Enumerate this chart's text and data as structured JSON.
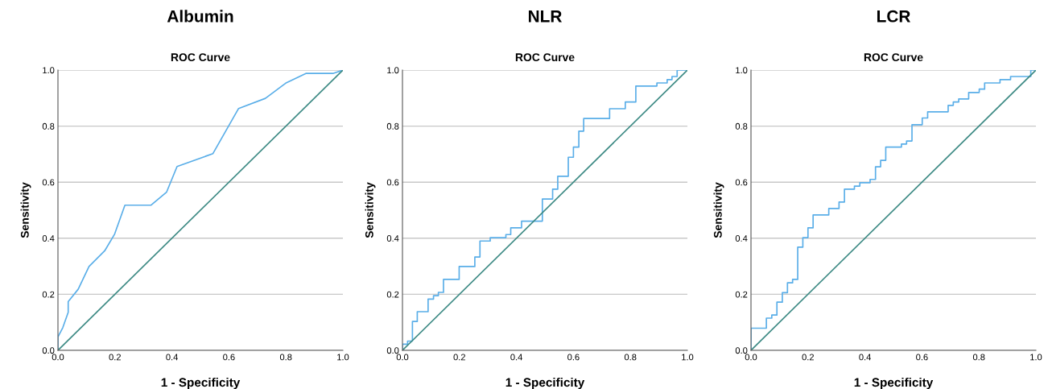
{
  "chart_data": [
    {
      "type": "line",
      "title": "Albumin",
      "subtitle": "ROC Curve",
      "xlabel": "1 - Specificity",
      "ylabel": "Sensitivity",
      "xlim": [
        0,
        1
      ],
      "ylim": [
        0,
        1
      ],
      "xticks": [
        {
          "value": 0,
          "label": "0.0"
        },
        {
          "value": 0.2,
          "label": "0.2"
        },
        {
          "value": 0.4,
          "label": "0.4"
        },
        {
          "value": 0.6,
          "label": "0.6"
        },
        {
          "value": 0.8,
          "label": "0.8"
        },
        {
          "value": 1,
          "label": "1.0"
        }
      ],
      "yticks": [
        {
          "value": 0,
          "label": "0.0"
        },
        {
          "value": 0.2,
          "label": "0.2"
        },
        {
          "value": 0.4,
          "label": "0.4"
        },
        {
          "value": 0.6,
          "label": "0.6"
        },
        {
          "value": 0.8,
          "label": "0.8"
        },
        {
          "value": 1,
          "label": "1.0"
        }
      ],
      "grid": "y",
      "series": [
        {
          "color": "#5aaee8",
          "x": [
            0,
            0,
            0.017,
            0.036,
            0.036,
            0.071,
            0.109,
            0.164,
            0.199,
            0.235,
            0.327,
            0.381,
            0.418,
            0.544,
            0.634,
            0.728,
            0.799,
            0.87,
            0.965,
            1
          ],
          "values": [
            0,
            0.048,
            0.081,
            0.136,
            0.174,
            0.218,
            0.299,
            0.355,
            0.415,
            0.518,
            0.518,
            0.564,
            0.656,
            0.702,
            0.863,
            0.899,
            0.953,
            0.988,
            0.988,
            1
          ]
        },
        {
          "type": "line",
          "color": "#3d8a84",
          "x": [
            0,
            1
          ],
          "values": [
            0,
            1
          ]
        }
      ]
    },
    {
      "type": "step",
      "title": "NLR",
      "subtitle": "ROC Curve",
      "xlabel": "1 - Specificity",
      "ylabel": "Sensitivity",
      "xlim": [
        0,
        1
      ],
      "ylim": [
        0,
        1
      ],
      "xticks": [
        {
          "value": 0,
          "label": "0.0"
        },
        {
          "value": 0.2,
          "label": "0.2"
        },
        {
          "value": 0.4,
          "label": "0.4"
        },
        {
          "value": 0.6,
          "label": "0.6"
        },
        {
          "value": 0.8,
          "label": "0.8"
        },
        {
          "value": 1,
          "label": "1.0"
        }
      ],
      "yticks": [
        {
          "value": 0,
          "label": "0.0"
        },
        {
          "value": 0.2,
          "label": "0.2"
        },
        {
          "value": 0.4,
          "label": "0.4"
        },
        {
          "value": 0.6,
          "label": "0.6"
        },
        {
          "value": 0.8,
          "label": "0.8"
        },
        {
          "value": 1,
          "label": "1.0"
        }
      ],
      "grid": "y",
      "series": [
        {
          "color": "#5aaee8",
          "x": [
            0,
            0,
            0.018,
            0.035,
            0.052,
            0.09,
            0.109,
            0.126,
            0.144,
            0.199,
            0.254,
            0.272,
            0.308,
            0.363,
            0.38,
            0.418,
            0.491,
            0.527,
            0.545,
            0.582,
            0.6,
            0.619,
            0.636,
            0.727,
            0.782,
            0.819,
            0.893,
            0.929,
            0.946,
            0.964,
            1
          ],
          "values": [
            0,
            0.022,
            0.033,
            0.103,
            0.138,
            0.183,
            0.195,
            0.207,
            0.253,
            0.299,
            0.333,
            0.39,
            0.402,
            0.413,
            0.437,
            0.461,
            0.54,
            0.575,
            0.621,
            0.689,
            0.725,
            0.782,
            0.827,
            0.862,
            0.886,
            0.943,
            0.954,
            0.966,
            0.977,
            1,
            1
          ]
        },
        {
          "type": "line",
          "color": "#3d8a84",
          "x": [
            0,
            1
          ],
          "values": [
            0,
            1
          ]
        }
      ]
    },
    {
      "type": "step",
      "title": "LCR",
      "subtitle": "ROC Curve",
      "xlabel": "1 - Specificity",
      "ylabel": "Sensitivity",
      "xlim": [
        0,
        1
      ],
      "ylim": [
        0,
        1
      ],
      "xticks": [
        {
          "value": 0,
          "label": "0.0"
        },
        {
          "value": 0.2,
          "label": "0.2"
        },
        {
          "value": 0.4,
          "label": "0.4"
        },
        {
          "value": 0.6,
          "label": "0.6"
        },
        {
          "value": 0.8,
          "label": "0.8"
        },
        {
          "value": 1,
          "label": "1.0"
        }
      ],
      "yticks": [
        {
          "value": 0,
          "label": "0.0"
        },
        {
          "value": 0.2,
          "label": "0.2"
        },
        {
          "value": 0.4,
          "label": "0.4"
        },
        {
          "value": 0.6,
          "label": "0.6"
        },
        {
          "value": 0.8,
          "label": "0.8"
        },
        {
          "value": 1,
          "label": "1.0"
        }
      ],
      "grid": "y",
      "series": [
        {
          "color": "#5aaee8",
          "x": [
            0,
            0,
            0.054,
            0.073,
            0.091,
            0.11,
            0.128,
            0.146,
            0.164,
            0.182,
            0.2,
            0.218,
            0.273,
            0.309,
            0.328,
            0.363,
            0.382,
            0.418,
            0.437,
            0.455,
            0.473,
            0.528,
            0.546,
            0.565,
            0.601,
            0.62,
            0.692,
            0.71,
            0.729,
            0.764,
            0.801,
            0.82,
            0.874,
            0.911,
            0.982,
            1
          ],
          "values": [
            0,
            0.079,
            0.115,
            0.126,
            0.172,
            0.206,
            0.241,
            0.253,
            0.368,
            0.402,
            0.437,
            0.483,
            0.506,
            0.529,
            0.575,
            0.586,
            0.598,
            0.61,
            0.655,
            0.678,
            0.725,
            0.736,
            0.747,
            0.805,
            0.829,
            0.851,
            0.874,
            0.886,
            0.897,
            0.92,
            0.932,
            0.954,
            0.966,
            0.977,
            1,
            1
          ]
        },
        {
          "type": "line",
          "color": "#3d8a84",
          "x": [
            0,
            1
          ],
          "values": [
            0,
            1
          ]
        }
      ]
    }
  ]
}
